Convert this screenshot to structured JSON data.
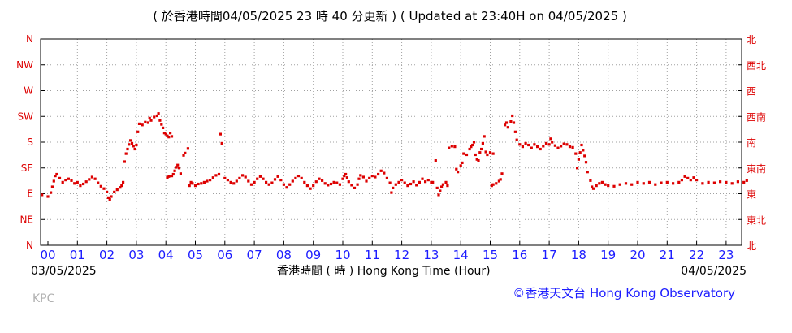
{
  "header": {
    "title": "( 於香港時間04/05/2025 23 時 40 分更新 ) ( Updated at 23:40H on 04/05/2025 )"
  },
  "footer": {
    "start_date": "03/05/2025",
    "end_date": "04/05/2025",
    "xlabel": "香港時間 ( 時 ) Hong Kong Time (Hour)",
    "station": "KPC",
    "credit": "©香港天文台 Hong Kong Observatory"
  },
  "colors": {
    "data": "#dd0000",
    "direction_labels": "#dd0000",
    "hour_labels": "#1c1cff",
    "grid": "#a0a0a0",
    "credit": "#1c1cff"
  },
  "chart_data": {
    "type": "scatter",
    "title": "",
    "xlabel": "香港時間 ( 時 ) Hong Kong Time (Hour)",
    "ylabel": "",
    "x_unit": "hour",
    "xlim": [
      0,
      24
    ],
    "ylim": [
      0,
      360
    ],
    "grid": true,
    "x_ticks": [
      "00",
      "01",
      "02",
      "03",
      "04",
      "05",
      "06",
      "07",
      "08",
      "09",
      "10",
      "11",
      "12",
      "13",
      "14",
      "15",
      "16",
      "17",
      "18",
      "19",
      "20",
      "21",
      "22",
      "23"
    ],
    "y_ticks_left": [
      "N",
      "NE",
      "E",
      "SE",
      "S",
      "SW",
      "W",
      "NW",
      "N"
    ],
    "y_ticks_right": [
      "北",
      "東北",
      "東",
      "東南",
      "南",
      "西南",
      "西",
      "西北",
      "北"
    ],
    "y_tick_values": [
      0,
      45,
      90,
      135,
      180,
      225,
      270,
      315,
      360
    ],
    "series": [
      {
        "points": [
          [
            -0.2,
            88
          ],
          [
            0,
            85
          ],
          [
            0.1,
            92
          ],
          [
            0.15,
            102
          ],
          [
            0.2,
            112
          ],
          [
            0.25,
            121
          ],
          [
            0.3,
            124
          ],
          [
            0.4,
            117
          ],
          [
            0.5,
            110
          ],
          [
            0.6,
            114
          ],
          [
            0.7,
            116
          ],
          [
            0.8,
            113
          ],
          [
            0.9,
            108
          ],
          [
            1.0,
            110
          ],
          [
            1.1,
            104
          ],
          [
            1.2,
            107
          ],
          [
            1.3,
            111
          ],
          [
            1.4,
            115
          ],
          [
            1.5,
            119
          ],
          [
            1.6,
            116
          ],
          [
            1.7,
            109
          ],
          [
            1.8,
            103
          ],
          [
            1.9,
            99
          ],
          [
            2.0,
            93
          ],
          [
            2.05,
            83
          ],
          [
            2.1,
            80
          ],
          [
            2.15,
            85
          ],
          [
            2.25,
            93
          ],
          [
            2.35,
            97
          ],
          [
            2.45,
            101
          ],
          [
            2.5,
            104
          ],
          [
            2.55,
            110
          ],
          [
            2.6,
            146
          ],
          [
            2.65,
            160
          ],
          [
            2.7,
            168
          ],
          [
            2.75,
            176
          ],
          [
            2.8,
            183
          ],
          [
            2.85,
            178
          ],
          [
            2.9,
            173
          ],
          [
            2.95,
            168
          ],
          [
            3.0,
            175
          ],
          [
            3.05,
            198
          ],
          [
            3.1,
            212
          ],
          [
            3.2,
            210
          ],
          [
            3.3,
            215
          ],
          [
            3.4,
            214
          ],
          [
            3.45,
            222
          ],
          [
            3.5,
            218
          ],
          [
            3.6,
            224
          ],
          [
            3.7,
            226
          ],
          [
            3.75,
            230
          ],
          [
            3.8,
            218
          ],
          [
            3.85,
            211
          ],
          [
            3.9,
            205
          ],
          [
            3.95,
            196
          ],
          [
            4.0,
            194
          ],
          [
            4.05,
            191
          ],
          [
            4.1,
            189
          ],
          [
            4.15,
            196
          ],
          [
            4.2,
            190
          ],
          [
            4.05,
            118
          ],
          [
            4.1,
            120
          ],
          [
            4.15,
            121
          ],
          [
            4.2,
            121
          ],
          [
            4.25,
            124
          ],
          [
            4.3,
            130
          ],
          [
            4.35,
            136
          ],
          [
            4.4,
            140
          ],
          [
            4.45,
            135
          ],
          [
            4.5,
            125
          ],
          [
            4.6,
            157
          ],
          [
            4.65,
            161
          ],
          [
            4.75,
            169
          ],
          [
            4.8,
            104
          ],
          [
            4.85,
            110
          ],
          [
            4.9,
            108
          ],
          [
            5.0,
            104
          ],
          [
            5.1,
            107
          ],
          [
            5.2,
            108
          ],
          [
            5.3,
            110
          ],
          [
            5.4,
            112
          ],
          [
            5.5,
            114
          ],
          [
            5.6,
            118
          ],
          [
            5.7,
            122
          ],
          [
            5.8,
            124
          ],
          [
            5.85,
            194
          ],
          [
            5.9,
            178
          ],
          [
            6.0,
            117
          ],
          [
            6.1,
            114
          ],
          [
            6.2,
            110
          ],
          [
            6.3,
            108
          ],
          [
            6.4,
            112
          ],
          [
            6.5,
            117
          ],
          [
            6.6,
            122
          ],
          [
            6.7,
            119
          ],
          [
            6.8,
            112
          ],
          [
            6.9,
            106
          ],
          [
            7.0,
            110
          ],
          [
            7.1,
            116
          ],
          [
            7.2,
            120
          ],
          [
            7.3,
            116
          ],
          [
            7.4,
            110
          ],
          [
            7.5,
            106
          ],
          [
            7.6,
            109
          ],
          [
            7.7,
            115
          ],
          [
            7.8,
            120
          ],
          [
            7.9,
            114
          ],
          [
            8.0,
            106
          ],
          [
            8.1,
            101
          ],
          [
            8.2,
            106
          ],
          [
            8.3,
            112
          ],
          [
            8.4,
            117
          ],
          [
            8.5,
            121
          ],
          [
            8.6,
            117
          ],
          [
            8.7,
            110
          ],
          [
            8.8,
            104
          ],
          [
            8.9,
            99
          ],
          [
            9.0,
            104
          ],
          [
            9.1,
            111
          ],
          [
            9.2,
            116
          ],
          [
            9.3,
            113
          ],
          [
            9.4,
            108
          ],
          [
            9.5,
            105
          ],
          [
            9.6,
            107
          ],
          [
            9.7,
            110
          ],
          [
            9.8,
            109
          ],
          [
            9.9,
            106
          ],
          [
            10.0,
            116
          ],
          [
            10.05,
            121
          ],
          [
            10.1,
            124
          ],
          [
            10.15,
            118
          ],
          [
            10.2,
            111
          ],
          [
            10.3,
            105
          ],
          [
            10.4,
            100
          ],
          [
            10.5,
            106
          ],
          [
            10.55,
            116
          ],
          [
            10.6,
            122
          ],
          [
            10.7,
            119
          ],
          [
            10.8,
            112
          ],
          [
            10.9,
            117
          ],
          [
            11.0,
            121
          ],
          [
            11.1,
            119
          ],
          [
            11.2,
            124
          ],
          [
            11.3,
            130
          ],
          [
            11.4,
            126
          ],
          [
            11.5,
            117
          ],
          [
            11.6,
            109
          ],
          [
            11.65,
            92
          ],
          [
            11.7,
            100
          ],
          [
            11.8,
            106
          ],
          [
            11.9,
            110
          ],
          [
            12.0,
            114
          ],
          [
            12.1,
            109
          ],
          [
            12.2,
            104
          ],
          [
            12.3,
            107
          ],
          [
            12.4,
            111
          ],
          [
            12.5,
            105
          ],
          [
            12.6,
            110
          ],
          [
            12.7,
            116
          ],
          [
            12.8,
            111
          ],
          [
            12.9,
            114
          ],
          [
            13.0,
            110
          ],
          [
            13.05,
            110
          ],
          [
            13.15,
            148
          ],
          [
            13.2,
            100
          ],
          [
            13.25,
            88
          ],
          [
            13.3,
            95
          ],
          [
            13.35,
            102
          ],
          [
            13.4,
            106
          ],
          [
            13.5,
            110
          ],
          [
            13.55,
            104
          ],
          [
            13.6,
            170
          ],
          [
            13.7,
            173
          ],
          [
            13.8,
            172
          ],
          [
            13.85,
            133
          ],
          [
            13.9,
            128
          ],
          [
            14.0,
            139
          ],
          [
            14.05,
            144
          ],
          [
            14.1,
            160
          ],
          [
            14.2,
            158
          ],
          [
            14.3,
            168
          ],
          [
            14.35,
            172
          ],
          [
            14.4,
            175
          ],
          [
            14.45,
            180
          ],
          [
            14.5,
            158
          ],
          [
            14.55,
            150
          ],
          [
            14.6,
            148
          ],
          [
            14.65,
            162
          ],
          [
            14.7,
            168
          ],
          [
            14.75,
            178
          ],
          [
            14.8,
            190
          ],
          [
            14.85,
            163
          ],
          [
            14.9,
            158
          ],
          [
            15.0,
            162
          ],
          [
            15.1,
            160
          ],
          [
            15.05,
            104
          ],
          [
            15.1,
            106
          ],
          [
            15.2,
            108
          ],
          [
            15.3,
            112
          ],
          [
            15.35,
            115
          ],
          [
            15.4,
            125
          ],
          [
            15.5,
            210
          ],
          [
            15.55,
            214
          ],
          [
            15.6,
            206
          ],
          [
            15.7,
            216
          ],
          [
            15.75,
            226
          ],
          [
            15.8,
            214
          ],
          [
            15.85,
            198
          ],
          [
            15.9,
            184
          ],
          [
            16.0,
            176
          ],
          [
            16.1,
            172
          ],
          [
            16.2,
            178
          ],
          [
            16.3,
            175
          ],
          [
            16.4,
            170
          ],
          [
            16.5,
            176
          ],
          [
            16.6,
            172
          ],
          [
            16.7,
            168
          ],
          [
            16.8,
            173
          ],
          [
            16.9,
            178
          ],
          [
            17.0,
            176
          ],
          [
            17.05,
            186
          ],
          [
            17.1,
            180
          ],
          [
            17.2,
            174
          ],
          [
            17.3,
            170
          ],
          [
            17.4,
            173
          ],
          [
            17.5,
            177
          ],
          [
            17.6,
            176
          ],
          [
            17.7,
            172
          ],
          [
            17.8,
            171
          ],
          [
            17.9,
            160
          ],
          [
            17.95,
            135
          ],
          [
            18.0,
            150
          ],
          [
            18.05,
            162
          ],
          [
            18.1,
            175
          ],
          [
            18.15,
            166
          ],
          [
            18.2,
            156
          ],
          [
            18.25,
            145
          ],
          [
            18.3,
            128
          ],
          [
            18.4,
            113
          ],
          [
            18.45,
            102
          ],
          [
            18.5,
            99
          ],
          [
            18.6,
            104
          ],
          [
            18.7,
            108
          ],
          [
            18.8,
            110
          ],
          [
            18.9,
            106
          ],
          [
            19.0,
            104
          ],
          [
            19.2,
            103
          ],
          [
            19.4,
            106
          ],
          [
            19.6,
            108
          ],
          [
            19.8,
            106
          ],
          [
            20.0,
            110
          ],
          [
            20.2,
            108
          ],
          [
            20.4,
            110
          ],
          [
            20.6,
            106
          ],
          [
            20.8,
            109
          ],
          [
            21.0,
            110
          ],
          [
            21.2,
            108
          ],
          [
            21.4,
            110
          ],
          [
            21.5,
            114
          ],
          [
            21.6,
            120
          ],
          [
            21.7,
            117
          ],
          [
            21.8,
            114
          ],
          [
            21.9,
            118
          ],
          [
            22.0,
            114
          ],
          [
            22.2,
            108
          ],
          [
            22.4,
            110
          ],
          [
            22.6,
            109
          ],
          [
            22.8,
            111
          ],
          [
            23.0,
            110
          ],
          [
            23.2,
            108
          ],
          [
            23.4,
            111
          ],
          [
            23.6,
            110
          ],
          [
            23.7,
            113
          ]
        ]
      }
    ]
  }
}
